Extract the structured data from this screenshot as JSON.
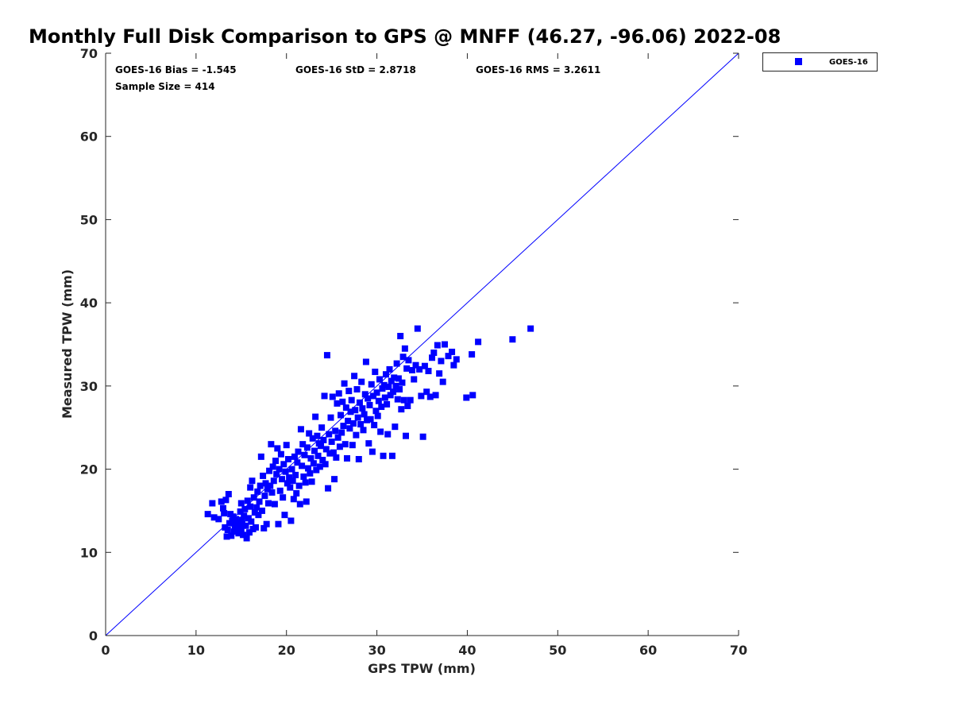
{
  "chart_data": {
    "type": "scatter",
    "title": "Monthly Full Disk Comparison to GPS @ MNFF (46.27, -96.06) 2022-08",
    "xlabel": "GPS TPW (mm)",
    "ylabel": "Measured TPW (mm)",
    "xlim": [
      0,
      70
    ],
    "ylim": [
      0,
      70
    ],
    "xticks": [
      "0",
      "10",
      "20",
      "30",
      "40",
      "50",
      "60",
      "70"
    ],
    "yticks": [
      "0",
      "10",
      "20",
      "30",
      "40",
      "50",
      "60",
      "70"
    ],
    "grid": false,
    "legend_position": "top-right",
    "reference_line": {
      "from": [
        0,
        0
      ],
      "to": [
        70,
        70
      ],
      "color": "#0000ff"
    },
    "stats": {
      "bias": "GOES-16 Bias = -1.545",
      "std": "GOES-16 StD = 2.8718",
      "rms": "GOES-16 RMS = 3.2611",
      "sample": "Sample Size = 414"
    },
    "series": [
      {
        "name": "GOES-16",
        "color": "#0000ff",
        "marker": "square",
        "points": [
          [
            11.3,
            14.6
          ],
          [
            11.8,
            15.9
          ],
          [
            12.0,
            14.2
          ],
          [
            12.5,
            14.0
          ],
          [
            12.8,
            16.1
          ],
          [
            13.0,
            15.3
          ],
          [
            13.1,
            14.7
          ],
          [
            13.2,
            13.0
          ],
          [
            13.3,
            16.3
          ],
          [
            13.4,
            11.9
          ],
          [
            13.5,
            12.7
          ],
          [
            13.6,
            17.0
          ],
          [
            13.7,
            13.5
          ],
          [
            13.8,
            14.6
          ],
          [
            13.9,
            12.0
          ],
          [
            14.0,
            13.8
          ],
          [
            14.1,
            14.3
          ],
          [
            14.2,
            12.5
          ],
          [
            14.3,
            13.1
          ],
          [
            14.4,
            14.0
          ],
          [
            14.5,
            12.9
          ],
          [
            14.6,
            13.6
          ],
          [
            14.7,
            12.3
          ],
          [
            14.8,
            13.3
          ],
          [
            14.9,
            14.9
          ],
          [
            15.0,
            12.6
          ],
          [
            15.0,
            15.9
          ],
          [
            15.1,
            13.9
          ],
          [
            15.2,
            12.1
          ],
          [
            15.3,
            14.4
          ],
          [
            15.4,
            15.2
          ],
          [
            15.5,
            13.2
          ],
          [
            15.6,
            11.7
          ],
          [
            15.7,
            16.2
          ],
          [
            15.8,
            14.1
          ],
          [
            15.9,
            12.4
          ],
          [
            16.0,
            17.8
          ],
          [
            16.0,
            15.5
          ],
          [
            16.1,
            13.7
          ],
          [
            16.2,
            18.6
          ],
          [
            16.3,
            12.8
          ],
          [
            16.4,
            16.6
          ],
          [
            16.5,
            14.8
          ],
          [
            16.6,
            13.0
          ],
          [
            16.7,
            15.4
          ],
          [
            16.8,
            17.3
          ],
          [
            16.9,
            14.5
          ],
          [
            17.0,
            16.1
          ],
          [
            17.1,
            18.0
          ],
          [
            17.2,
            21.5
          ],
          [
            17.3,
            15.0
          ],
          [
            17.4,
            19.2
          ],
          [
            17.5,
            12.9
          ],
          [
            17.6,
            16.8
          ],
          [
            17.7,
            18.3
          ],
          [
            17.8,
            13.4
          ],
          [
            17.9,
            17.6
          ],
          [
            18.0,
            15.9
          ],
          [
            18.1,
            19.8
          ],
          [
            18.2,
            18.0
          ],
          [
            18.3,
            23.0
          ],
          [
            18.4,
            17.2
          ],
          [
            18.5,
            20.3
          ],
          [
            18.6,
            18.6
          ],
          [
            18.7,
            15.8
          ],
          [
            18.8,
            21.0
          ],
          [
            18.9,
            19.4
          ],
          [
            19.0,
            22.5
          ],
          [
            19.1,
            13.4
          ],
          [
            19.2,
            20.0
          ],
          [
            19.3,
            17.4
          ],
          [
            19.4,
            21.8
          ],
          [
            19.5,
            18.8
          ],
          [
            19.6,
            16.6
          ],
          [
            19.7,
            20.6
          ],
          [
            19.8,
            14.5
          ],
          [
            19.9,
            19.7
          ],
          [
            20.0,
            22.9
          ],
          [
            20.1,
            18.3
          ],
          [
            20.2,
            21.2
          ],
          [
            20.3,
            19.0
          ],
          [
            20.4,
            17.8
          ],
          [
            20.5,
            13.8
          ],
          [
            20.6,
            20.0
          ],
          [
            20.7,
            18.6
          ],
          [
            20.8,
            16.4
          ],
          [
            20.9,
            21.5
          ],
          [
            21.0,
            19.3
          ],
          [
            21.1,
            17.1
          ],
          [
            21.2,
            20.8
          ],
          [
            21.3,
            22.1
          ],
          [
            21.4,
            18.0
          ],
          [
            21.5,
            15.8
          ],
          [
            21.6,
            24.8
          ],
          [
            21.7,
            20.4
          ],
          [
            21.8,
            23.0
          ],
          [
            21.9,
            19.1
          ],
          [
            22.0,
            21.7
          ],
          [
            22.1,
            18.4
          ],
          [
            22.2,
            16.1
          ],
          [
            22.3,
            22.6
          ],
          [
            22.4,
            20.1
          ],
          [
            22.5,
            24.3
          ],
          [
            22.6,
            19.5
          ],
          [
            22.7,
            21.3
          ],
          [
            22.8,
            18.5
          ],
          [
            22.9,
            23.7
          ],
          [
            23.0,
            20.7
          ],
          [
            23.1,
            22.2
          ],
          [
            23.2,
            26.3
          ],
          [
            23.3,
            19.9
          ],
          [
            23.4,
            24.0
          ],
          [
            23.5,
            21.6
          ],
          [
            23.6,
            23.1
          ],
          [
            23.7,
            20.3
          ],
          [
            23.8,
            22.8
          ],
          [
            23.9,
            25.0
          ],
          [
            24.0,
            21.1
          ],
          [
            24.1,
            23.5
          ],
          [
            24.2,
            28.8
          ],
          [
            24.3,
            20.6
          ],
          [
            24.4,
            22.4
          ],
          [
            24.5,
            33.7
          ],
          [
            24.6,
            17.7
          ],
          [
            24.7,
            24.2
          ],
          [
            24.8,
            21.9
          ],
          [
            24.9,
            26.2
          ],
          [
            25.0,
            23.3
          ],
          [
            25.1,
            28.7
          ],
          [
            25.2,
            22.0
          ],
          [
            25.3,
            18.8
          ],
          [
            25.4,
            24.6
          ],
          [
            25.5,
            21.4
          ],
          [
            25.6,
            27.9
          ],
          [
            25.7,
            23.8
          ],
          [
            25.8,
            29.1
          ],
          [
            25.9,
            22.7
          ],
          [
            26.0,
            26.5
          ],
          [
            26.1,
            24.4
          ],
          [
            26.2,
            28.1
          ],
          [
            26.3,
            25.2
          ],
          [
            26.4,
            30.3
          ],
          [
            26.5,
            23.0
          ],
          [
            26.6,
            27.4
          ],
          [
            26.7,
            21.3
          ],
          [
            26.8,
            25.8
          ],
          [
            26.9,
            29.4
          ],
          [
            27.0,
            24.9
          ],
          [
            27.1,
            26.9
          ],
          [
            27.2,
            28.3
          ],
          [
            27.3,
            22.9
          ],
          [
            27.4,
            25.5
          ],
          [
            27.5,
            31.2
          ],
          [
            27.6,
            27.1
          ],
          [
            27.7,
            24.1
          ],
          [
            27.8,
            29.6
          ],
          [
            27.9,
            26.2
          ],
          [
            28.0,
            21.2
          ],
          [
            28.1,
            28.0
          ],
          [
            28.2,
            25.4
          ],
          [
            28.3,
            30.5
          ],
          [
            28.4,
            27.3
          ],
          [
            28.5,
            24.7
          ],
          [
            28.6,
            26.6
          ],
          [
            28.7,
            29.0
          ],
          [
            28.8,
            32.9
          ],
          [
            28.9,
            25.9
          ],
          [
            29.0,
            28.5
          ],
          [
            29.1,
            23.1
          ],
          [
            29.2,
            27.7
          ],
          [
            29.3,
            26.0
          ],
          [
            29.4,
            30.2
          ],
          [
            29.5,
            22.1
          ],
          [
            29.6,
            28.8
          ],
          [
            29.7,
            25.3
          ],
          [
            29.8,
            31.7
          ],
          [
            29.9,
            27.0
          ],
          [
            30.0,
            29.2
          ],
          [
            30.1,
            26.4
          ],
          [
            30.2,
            28.2
          ],
          [
            30.3,
            30.8
          ],
          [
            30.4,
            24.5
          ],
          [
            30.5,
            27.5
          ],
          [
            30.6,
            29.7
          ],
          [
            30.7,
            21.6
          ],
          [
            30.8,
            30.1
          ],
          [
            30.9,
            28.6
          ],
          [
            31.0,
            31.4
          ],
          [
            31.1,
            27.8
          ],
          [
            31.2,
            24.2
          ],
          [
            31.3,
            29.9
          ],
          [
            31.4,
            32.0
          ],
          [
            31.5,
            28.9
          ],
          [
            31.6,
            30.6
          ],
          [
            31.7,
            21.6
          ],
          [
            31.8,
            29.3
          ],
          [
            31.9,
            31.0
          ],
          [
            32.0,
            25.1
          ],
          [
            32.1,
            30.0
          ],
          [
            32.2,
            32.7
          ],
          [
            32.3,
            28.4
          ],
          [
            32.4,
            30.9
          ],
          [
            32.5,
            29.6
          ],
          [
            32.6,
            36.0
          ],
          [
            32.7,
            27.2
          ],
          [
            32.8,
            30.4
          ],
          [
            32.9,
            33.5
          ],
          [
            33.0,
            28.3
          ],
          [
            33.1,
            34.5
          ],
          [
            33.2,
            24.0
          ],
          [
            33.3,
            32.1
          ],
          [
            33.4,
            27.6
          ],
          [
            33.5,
            33.1
          ],
          [
            33.7,
            28.3
          ],
          [
            33.9,
            31.9
          ],
          [
            34.1,
            30.8
          ],
          [
            34.3,
            32.5
          ],
          [
            34.5,
            36.9
          ],
          [
            34.7,
            32.0
          ],
          [
            34.9,
            28.8
          ],
          [
            35.1,
            23.9
          ],
          [
            35.3,
            32.4
          ],
          [
            35.5,
            29.3
          ],
          [
            35.7,
            31.8
          ],
          [
            35.9,
            28.7
          ],
          [
            36.1,
            33.4
          ],
          [
            36.3,
            34.0
          ],
          [
            36.5,
            28.9
          ],
          [
            36.7,
            34.9
          ],
          [
            36.9,
            31.5
          ],
          [
            37.1,
            33.0
          ],
          [
            37.3,
            30.5
          ],
          [
            37.5,
            35.0
          ],
          [
            37.9,
            33.6
          ],
          [
            38.3,
            34.1
          ],
          [
            38.5,
            32.5
          ],
          [
            38.8,
            33.2
          ],
          [
            39.9,
            28.6
          ],
          [
            40.5,
            33.8
          ],
          [
            40.6,
            28.9
          ],
          [
            41.2,
            35.3
          ],
          [
            45.0,
            35.6
          ],
          [
            47.0,
            36.9
          ]
        ]
      }
    ]
  }
}
